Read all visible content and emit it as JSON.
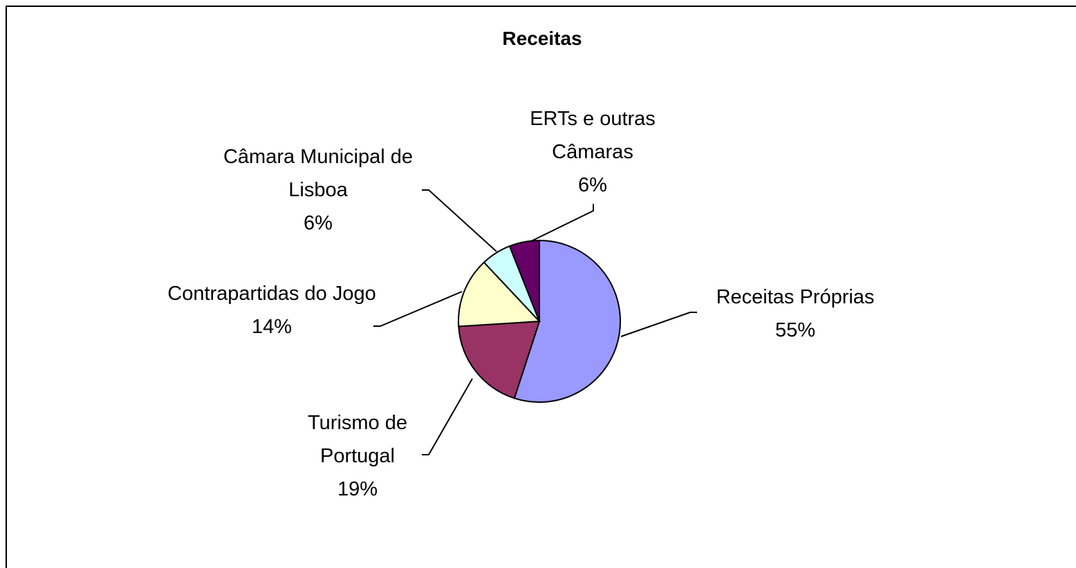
{
  "chart_data": {
    "type": "pie",
    "title": "Receitas",
    "categories": [
      "Receitas Próprias",
      "Turismo de Portugal",
      "Contrapartidas do Jogo",
      "Câmara Municipal de Lisboa",
      "ERTs e outras Câmaras"
    ],
    "values": [
      55,
      19,
      14,
      6,
      6
    ],
    "value_labels": [
      "55%",
      "19%",
      "14%",
      "6%",
      "6%"
    ],
    "colors": [
      "#9999ff",
      "#993366",
      "#ffffcc",
      "#ccffff",
      "#660066"
    ]
  }
}
